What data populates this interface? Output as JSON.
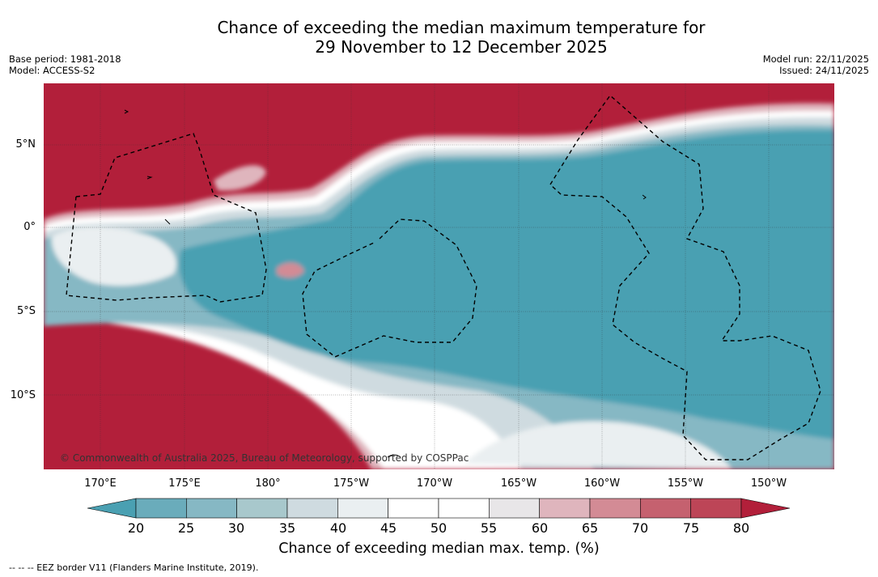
{
  "title": {
    "line1": "Chance of exceeding the median maximum temperature for",
    "line2": "29 November to 12 December 2025"
  },
  "meta": {
    "base_period": "Base period: 1981-2018",
    "model": "Model: ACCESS-S2",
    "model_run": "Model run: 22/11/2025",
    "issued": "Issued: 24/11/2025"
  },
  "map": {
    "copyright": "© Commonwealth of Australia 2025, Bureau of Meteorology, supported by COSPPac",
    "lat_labels": [
      "5°N",
      "0°",
      "5°S",
      "10°S"
    ],
    "lon_labels": [
      "170°E",
      "175°E",
      "180°",
      "175°W",
      "170°W",
      "165°W",
      "160°W",
      "155°W",
      "150°W"
    ]
  },
  "colorbar": {
    "ticks": [
      "20",
      "25",
      "30",
      "35",
      "40",
      "45",
      "50",
      "55",
      "60",
      "65",
      "70",
      "75",
      "80"
    ],
    "colors": [
      "#4aa0b2",
      "#6aacbb",
      "#86b8c4",
      "#a8c8cc",
      "#cfdbe0",
      "#eaeff1",
      "#ffffff",
      "#ffffff",
      "#e8e6e8",
      "#dfb5bd",
      "#d38b95",
      "#c5616f",
      "#bd4557",
      "#b21f3a"
    ],
    "label": "Chance of exceeding median max. temp. (%)"
  },
  "footnote": "--  --  -- EEZ border V11 (Flanders Marine Institute, 2019)."
}
